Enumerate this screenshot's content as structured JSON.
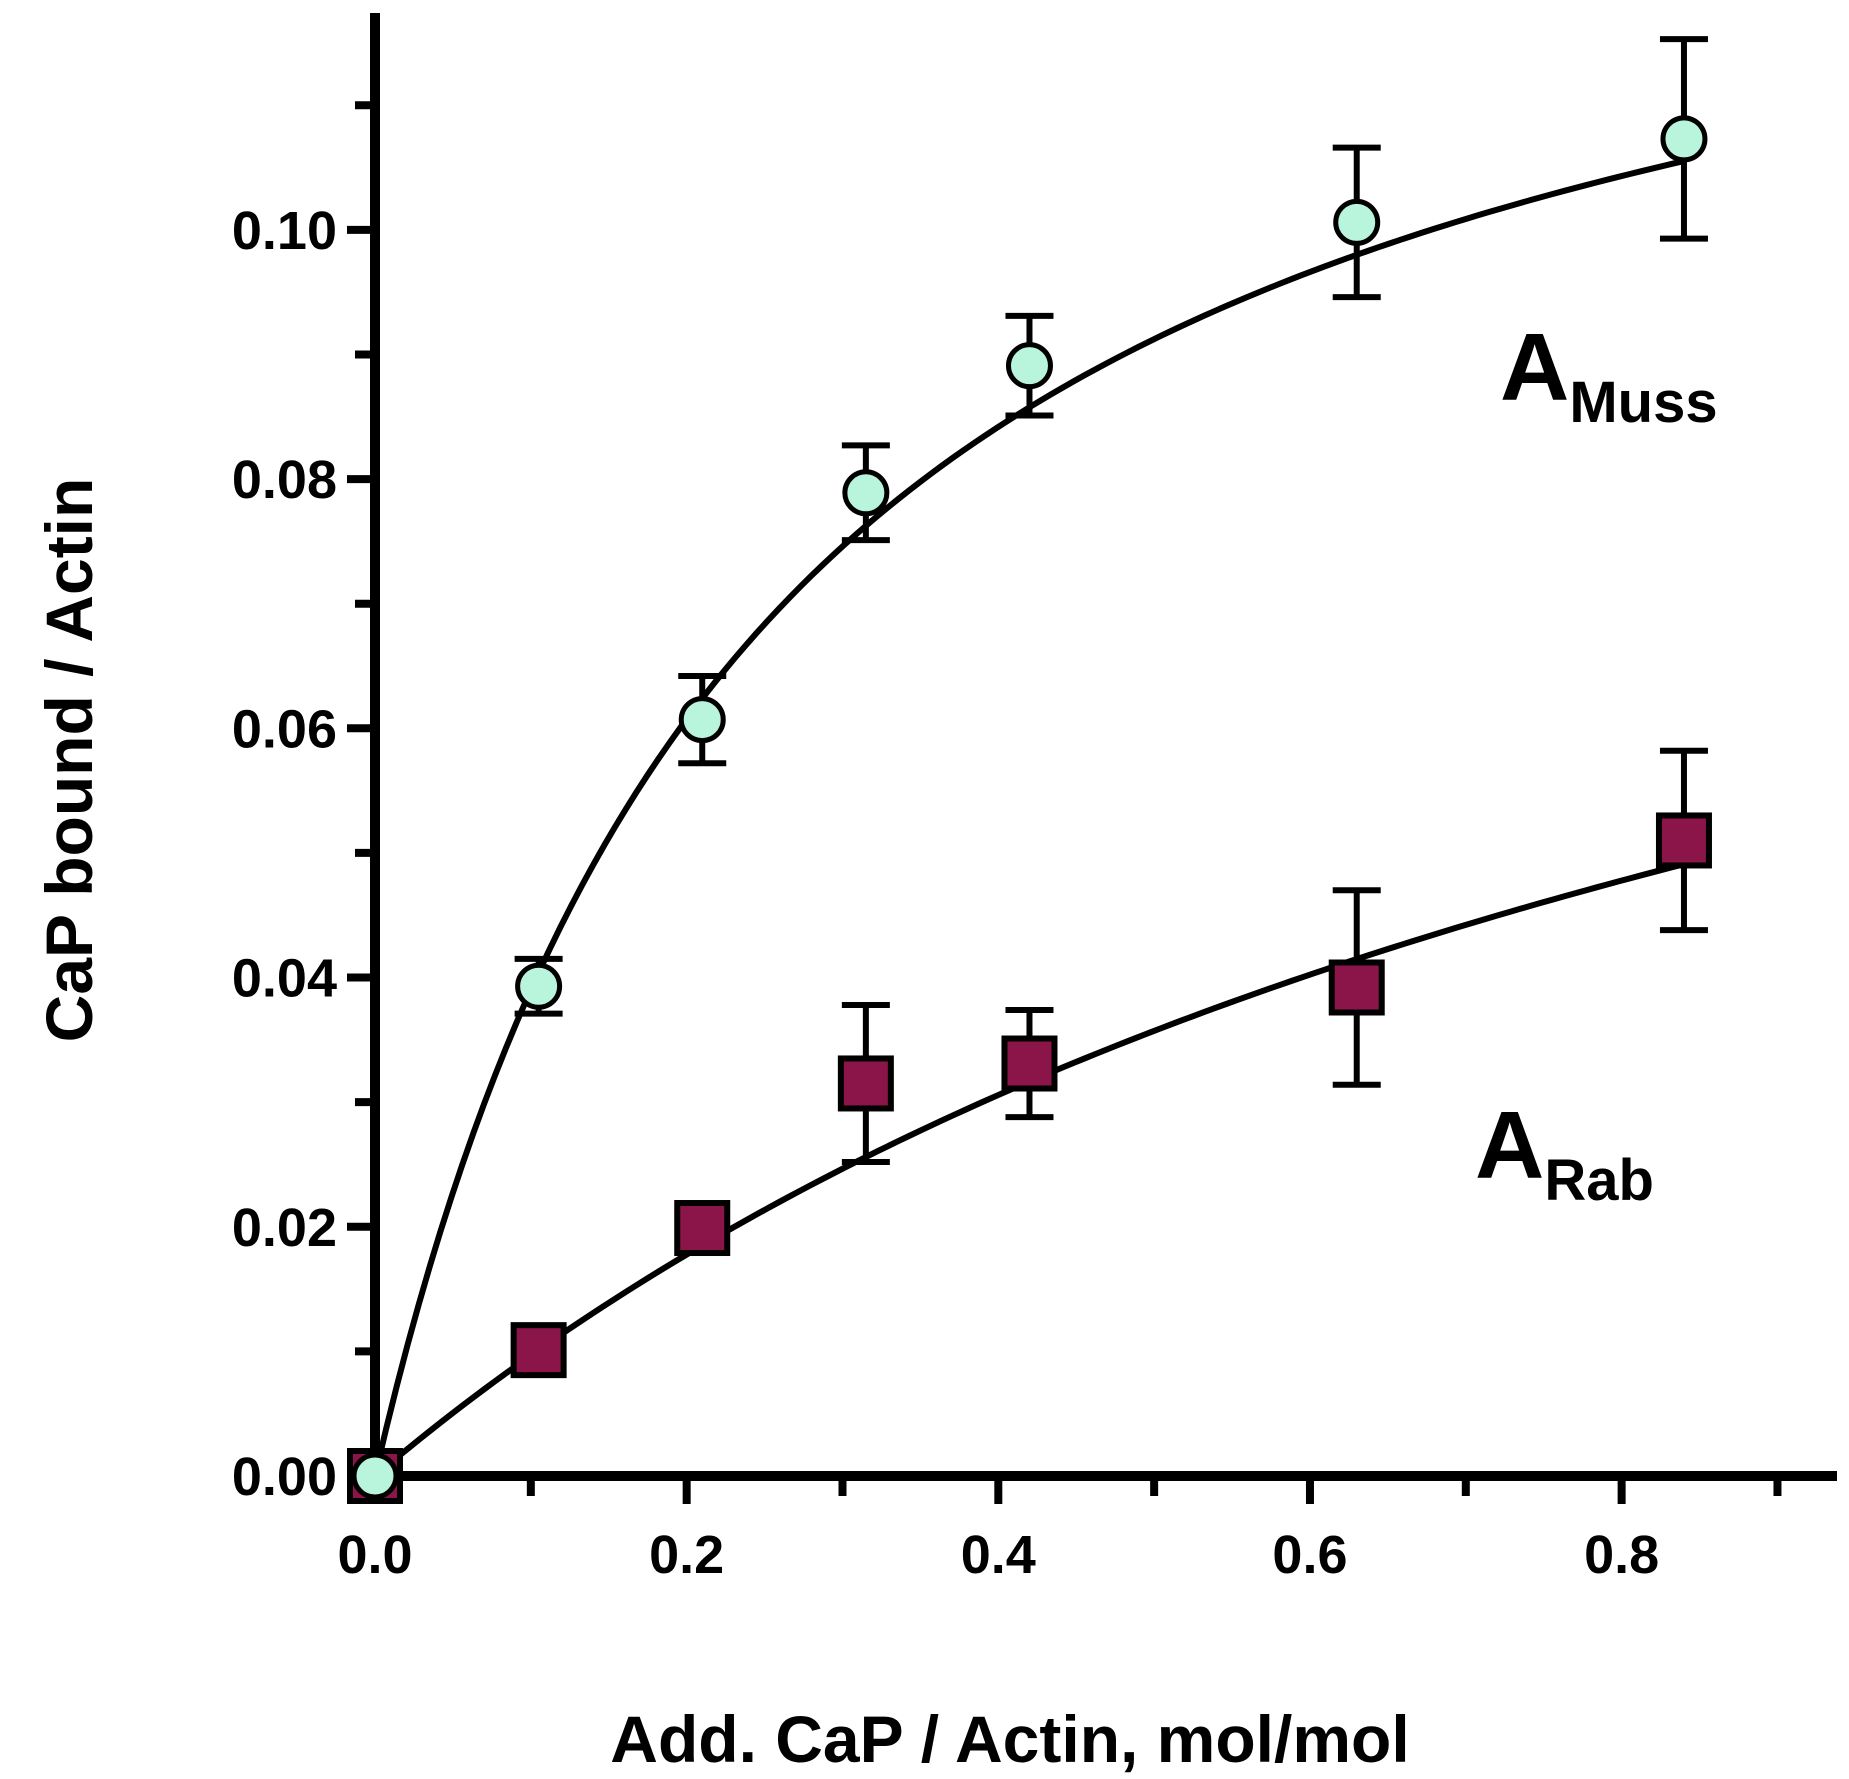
{
  "chart_data": {
    "type": "scatter",
    "title": "",
    "xlabel": "Add. CaP / Actin, mol/mol",
    "ylabel": "CaP bound / Actin",
    "xlim": [
      0,
      0.935
    ],
    "ylim": [
      0,
      0.117
    ],
    "xticks": [
      "0.0",
      "0.2",
      "0.4",
      "0.6",
      "0.8"
    ],
    "yticks": [
      "0.00",
      "0.02",
      "0.04",
      "0.06",
      "0.08",
      "0.10"
    ],
    "colors": {
      "muss": "#b8f5dc",
      "rab": "#8b1448",
      "line": "#000000"
    },
    "series": [
      {
        "name": "A_Muss",
        "label_main": "A",
        "label_sub": "Muss",
        "marker": "circle",
        "fit_vmax": 0.1371,
        "fit_k": 0.2514,
        "points": [
          {
            "x": 0.0,
            "y": 0.0,
            "err": 0.0
          },
          {
            "x": 0.105,
            "y": 0.0393,
            "err": 0.0022
          },
          {
            "x": 0.21,
            "y": 0.0607,
            "err": 0.0035
          },
          {
            "x": 0.315,
            "y": 0.0789,
            "err": 0.0038
          },
          {
            "x": 0.42,
            "y": 0.0891,
            "err": 0.004
          },
          {
            "x": 0.63,
            "y": 0.1006,
            "err": 0.006
          },
          {
            "x": 0.84,
            "y": 0.1073,
            "err": 0.008
          }
        ]
      },
      {
        "name": "A_Rab",
        "label_main": "A",
        "label_sub": "Rab",
        "marker": "square",
        "fit_vmax": 0.1093,
        "fit_k": 1.03,
        "points": [
          {
            "x": 0.0,
            "y": 0.0,
            "err": 0.0
          },
          {
            "x": 0.105,
            "y": 0.0101,
            "err": 0.0
          },
          {
            "x": 0.21,
            "y": 0.0199,
            "err": 0.0
          },
          {
            "x": 0.315,
            "y": 0.0315,
            "err": 0.0063
          },
          {
            "x": 0.42,
            "y": 0.0331,
            "err": 0.0043
          },
          {
            "x": 0.63,
            "y": 0.0392,
            "err": 0.0078
          },
          {
            "x": 0.84,
            "y": 0.051,
            "err": 0.0072
          }
        ]
      }
    ]
  }
}
